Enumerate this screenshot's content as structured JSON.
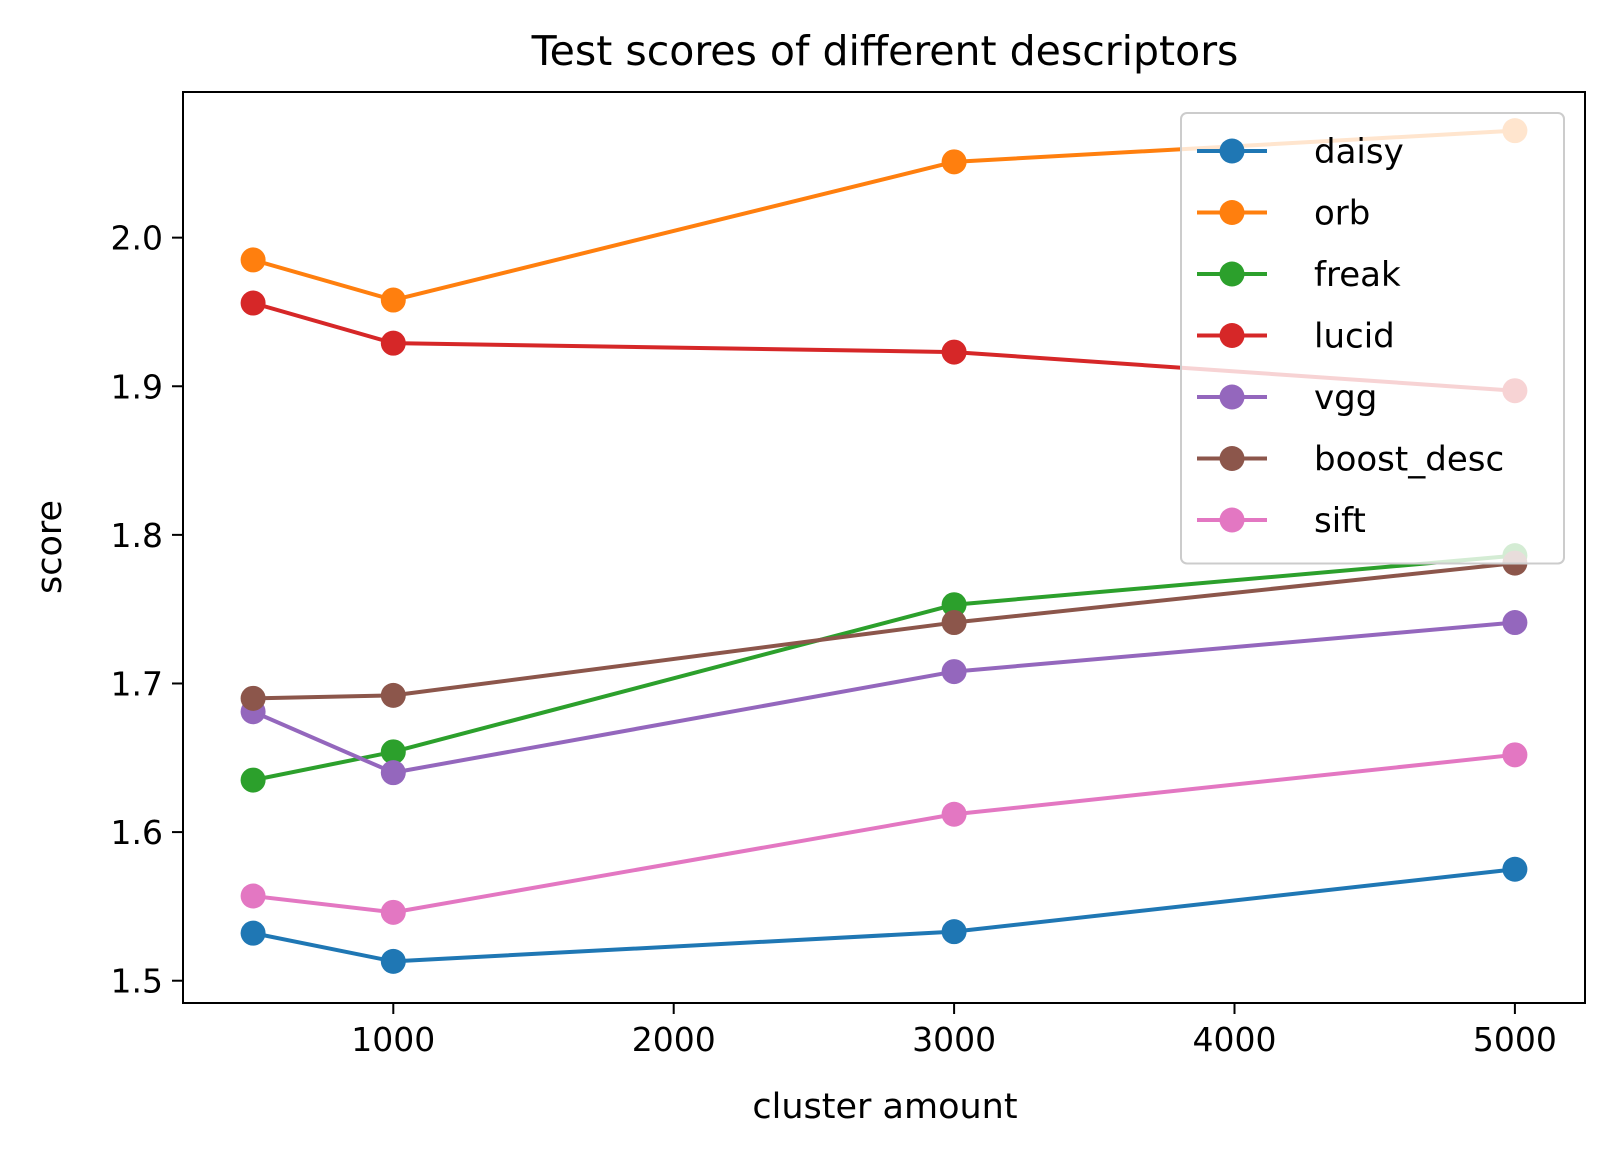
{
  "chart_data": {
    "type": "line",
    "title": "Test scores of different descriptors",
    "xlabel": "cluster amount",
    "ylabel": "score",
    "xlim": [
      250,
      5250
    ],
    "ylim": [
      1.485,
      2.098
    ],
    "x_ticks": [
      1000,
      2000,
      3000,
      4000,
      5000
    ],
    "y_ticks": [
      1.5,
      1.6,
      1.7,
      1.8,
      1.9,
      2.0
    ],
    "x": [
      500,
      1000,
      3000,
      5000
    ],
    "grid": false,
    "legend_position": "top-right",
    "series": [
      {
        "name": "daisy",
        "color": "#1f77b4",
        "values": [
          1.532,
          1.513,
          1.533,
          1.575
        ]
      },
      {
        "name": "orb",
        "color": "#ff7f0e",
        "values": [
          1.985,
          1.958,
          2.051,
          2.072
        ]
      },
      {
        "name": "freak",
        "color": "#2ca02c",
        "values": [
          1.635,
          1.654,
          1.753,
          1.786
        ]
      },
      {
        "name": "lucid",
        "color": "#d62728",
        "values": [
          1.956,
          1.929,
          1.923,
          1.897
        ]
      },
      {
        "name": "vgg",
        "color": "#9467bd",
        "values": [
          1.681,
          1.64,
          1.708,
          1.741
        ]
      },
      {
        "name": "boost_desc",
        "color": "#8c564b",
        "values": [
          1.69,
          1.692,
          1.741,
          1.781
        ]
      },
      {
        "name": "sift",
        "color": "#e377c2",
        "values": [
          1.557,
          1.546,
          1.612,
          1.652
        ]
      }
    ]
  }
}
